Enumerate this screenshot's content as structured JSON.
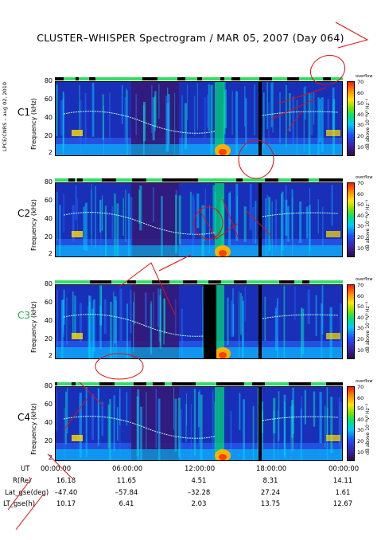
{
  "title": "CLUSTER–WHISPER Spectrogram / MAR 05, 2007 (Day 064)",
  "credit": "LPCE/CNRS – aug 02, 2010",
  "chart_data": {
    "type": "heatmap",
    "panels": [
      {
        "label": "C1",
        "label_color": "#000000"
      },
      {
        "label": "C2",
        "label_color": "#000000"
      },
      {
        "label": "C3",
        "label_color": "#22aa44"
      },
      {
        "label": "C4",
        "label_color": "#000000"
      }
    ],
    "ylabel": "Frequency (kHz)",
    "yticks": [
      "80",
      "60",
      "40",
      "20",
      "2"
    ],
    "ylim": [
      2,
      80
    ],
    "colorbar": {
      "label": "dB above 10⁻⁸V² Hz⁻¹",
      "ticks": [
        "70",
        "60",
        "50",
        "40",
        "30",
        "20",
        "10"
      ],
      "range": [
        10,
        70
      ],
      "overflow_label": "overflow"
    },
    "xaxis_label": "UT",
    "xticks": [
      "00:00:00",
      "06:00:00",
      "12:00:00",
      "18:00:00",
      "00:00:00"
    ],
    "ephemeris": [
      {
        "name": "R(Re)",
        "values": [
          "16.18",
          "11.65",
          "4.51",
          "8.31",
          "14.11"
        ]
      },
      {
        "name": "Lat_gse(deg)",
        "values": [
          "–47.40",
          "–57.84",
          "–32.28",
          "27.24",
          "1.61"
        ]
      },
      {
        "name": "LT_gse(h)",
        "values": [
          "10.17",
          "6.41",
          "2.03",
          "13.75",
          "12.67"
        ]
      }
    ]
  }
}
